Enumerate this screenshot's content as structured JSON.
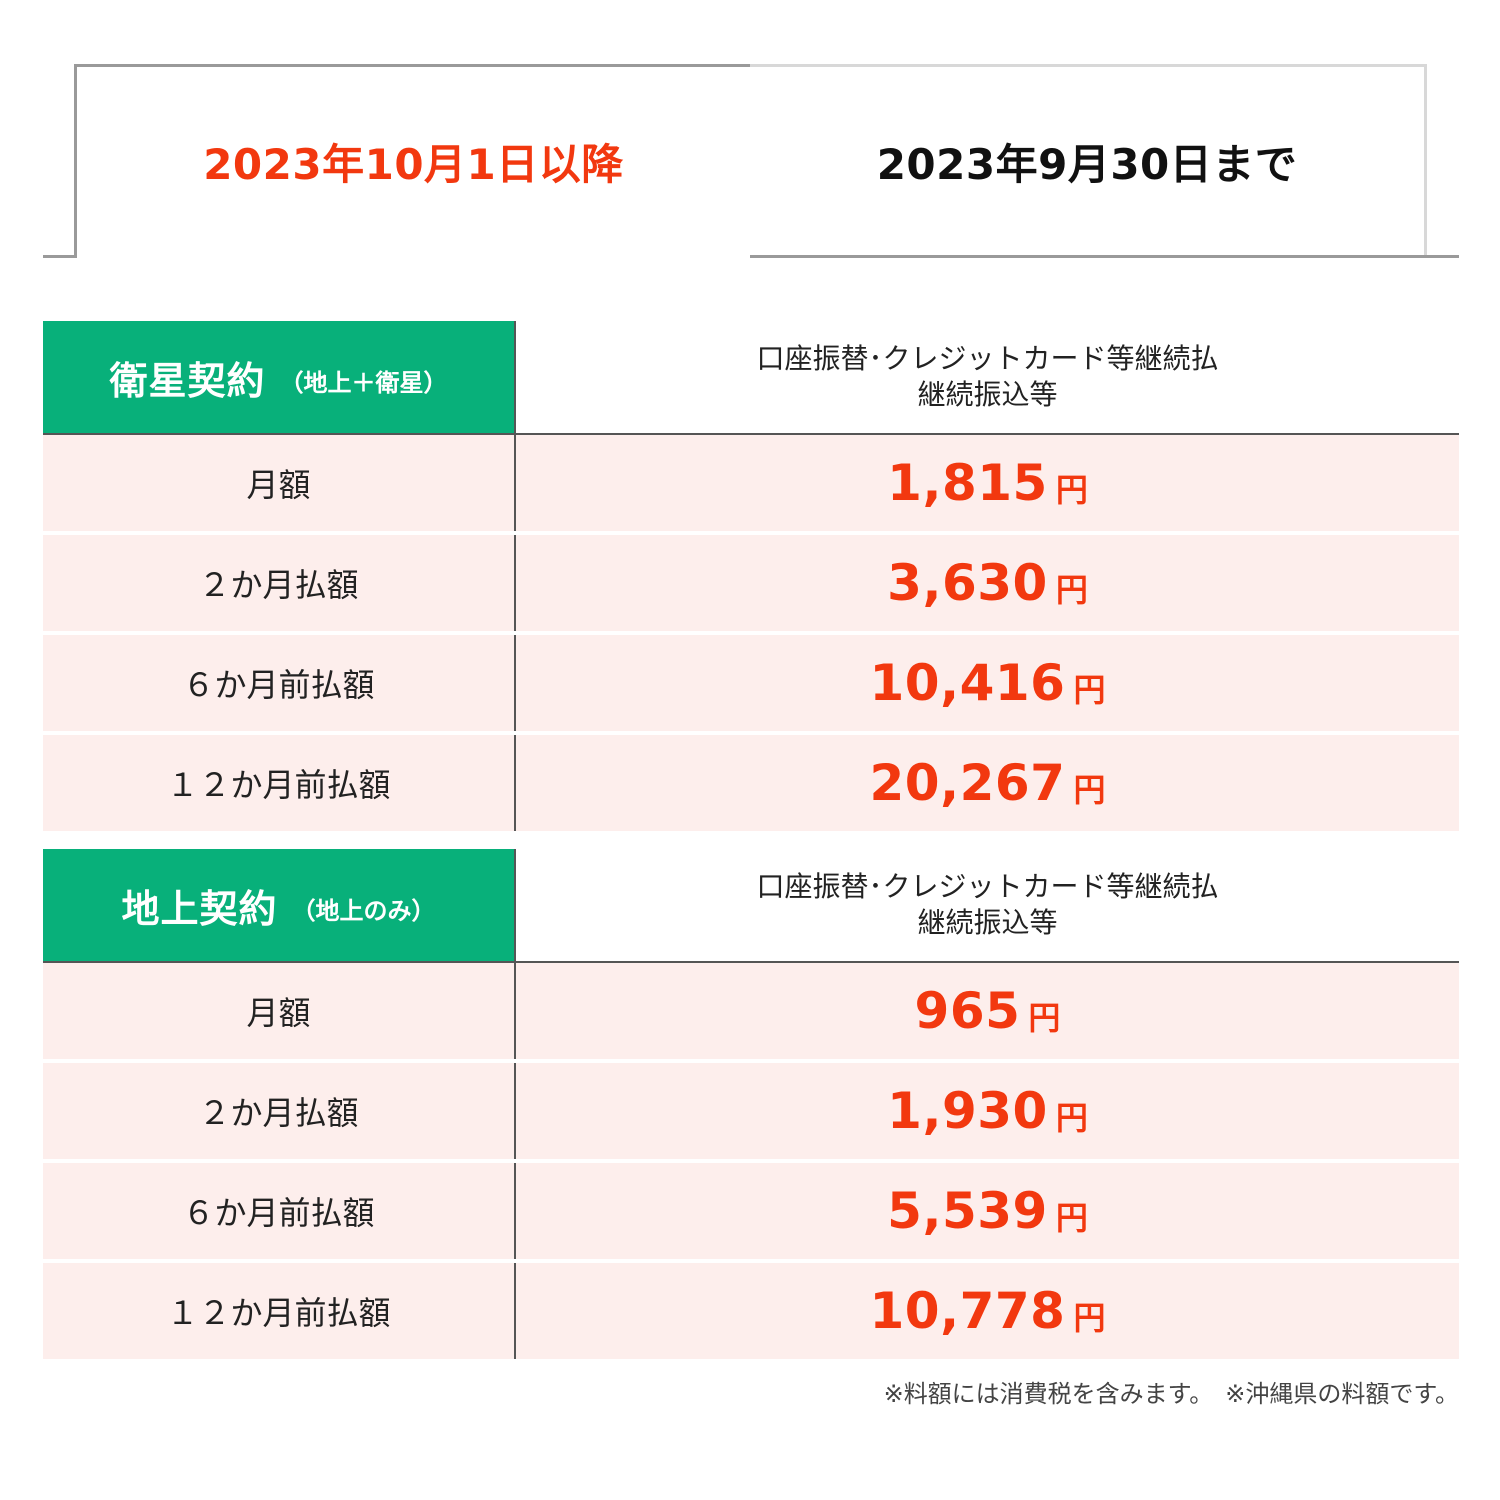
{
  "tabs": {
    "active_label": "2023年10月1日以降",
    "inactive_label": "2023年9月30日まで",
    "active_color": "#f2380f"
  },
  "colors": {
    "header_green": "#08b07a",
    "row_pink": "#fdeeec",
    "value_red": "#f2380f"
  },
  "tables": [
    {
      "plan_name": "衛星契約",
      "plan_note": "（地上＋衛星）",
      "method_line1": "口座振替･クレジットカード等継続払",
      "method_line2": "継続振込等",
      "rows": [
        {
          "label": "月額",
          "amount": "1,815",
          "unit": "円"
        },
        {
          "label": "２か月払額",
          "amount": "3,630",
          "unit": "円"
        },
        {
          "label": "６か月前払額",
          "amount": "10,416",
          "unit": "円"
        },
        {
          "label": "１２か月前払額",
          "amount": "20,267",
          "unit": "円"
        }
      ]
    },
    {
      "plan_name": "地上契約",
      "plan_note": "（地上のみ）",
      "method_line1": "口座振替･クレジットカード等継続払",
      "method_line2": "継続振込等",
      "rows": [
        {
          "label": "月額",
          "amount": "965",
          "unit": "円"
        },
        {
          "label": "２か月払額",
          "amount": "1,930",
          "unit": "円"
        },
        {
          "label": "６か月前払額",
          "amount": "5,539",
          "unit": "円"
        },
        {
          "label": "１２か月前払額",
          "amount": "10,778",
          "unit": "円"
        }
      ]
    }
  ],
  "footnote": "※料額には消費税を含みます。　※沖縄県の料額です。"
}
